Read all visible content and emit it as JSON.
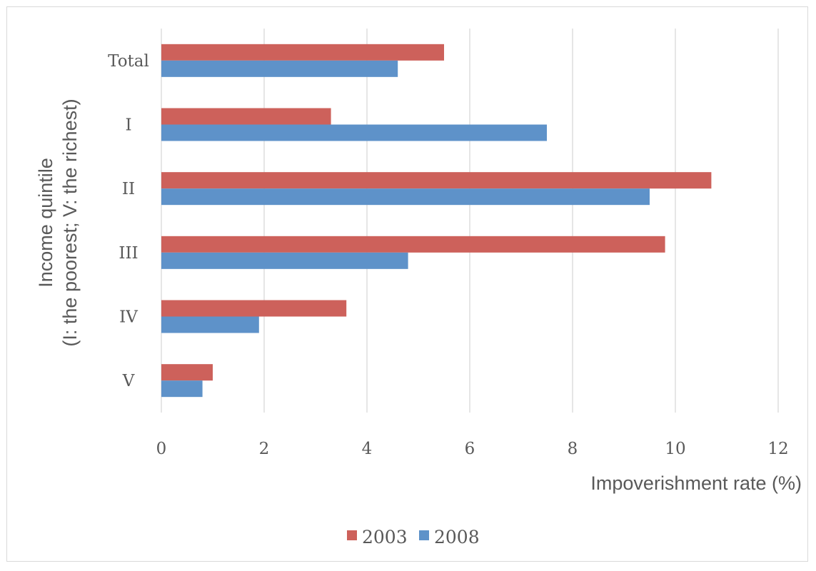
{
  "chart_data": {
    "type": "bar",
    "orientation": "horizontal",
    "categories": [
      "Total",
      "I",
      "II",
      "III",
      "IV",
      "V"
    ],
    "series": [
      {
        "name": "2003",
        "color": "#cd615b",
        "values": [
          5.5,
          3.3,
          10.7,
          9.8,
          3.6,
          1.0
        ]
      },
      {
        "name": "2008",
        "color": "#5e92c9",
        "values": [
          4.6,
          7.5,
          9.5,
          4.8,
          1.9,
          0.8
        ]
      }
    ],
    "xlabel": "Impoverishment rate (%)",
    "ylabel_lines": [
      "Income quintile",
      "(I: the poorest; V: the richest)"
    ],
    "xlim": [
      0,
      12
    ],
    "xticks": [
      "0",
      "2",
      "4",
      "6",
      "8",
      "10",
      "12"
    ],
    "grid": true,
    "legend": "bottom-center",
    "gridColor": "#d9d9d9"
  }
}
